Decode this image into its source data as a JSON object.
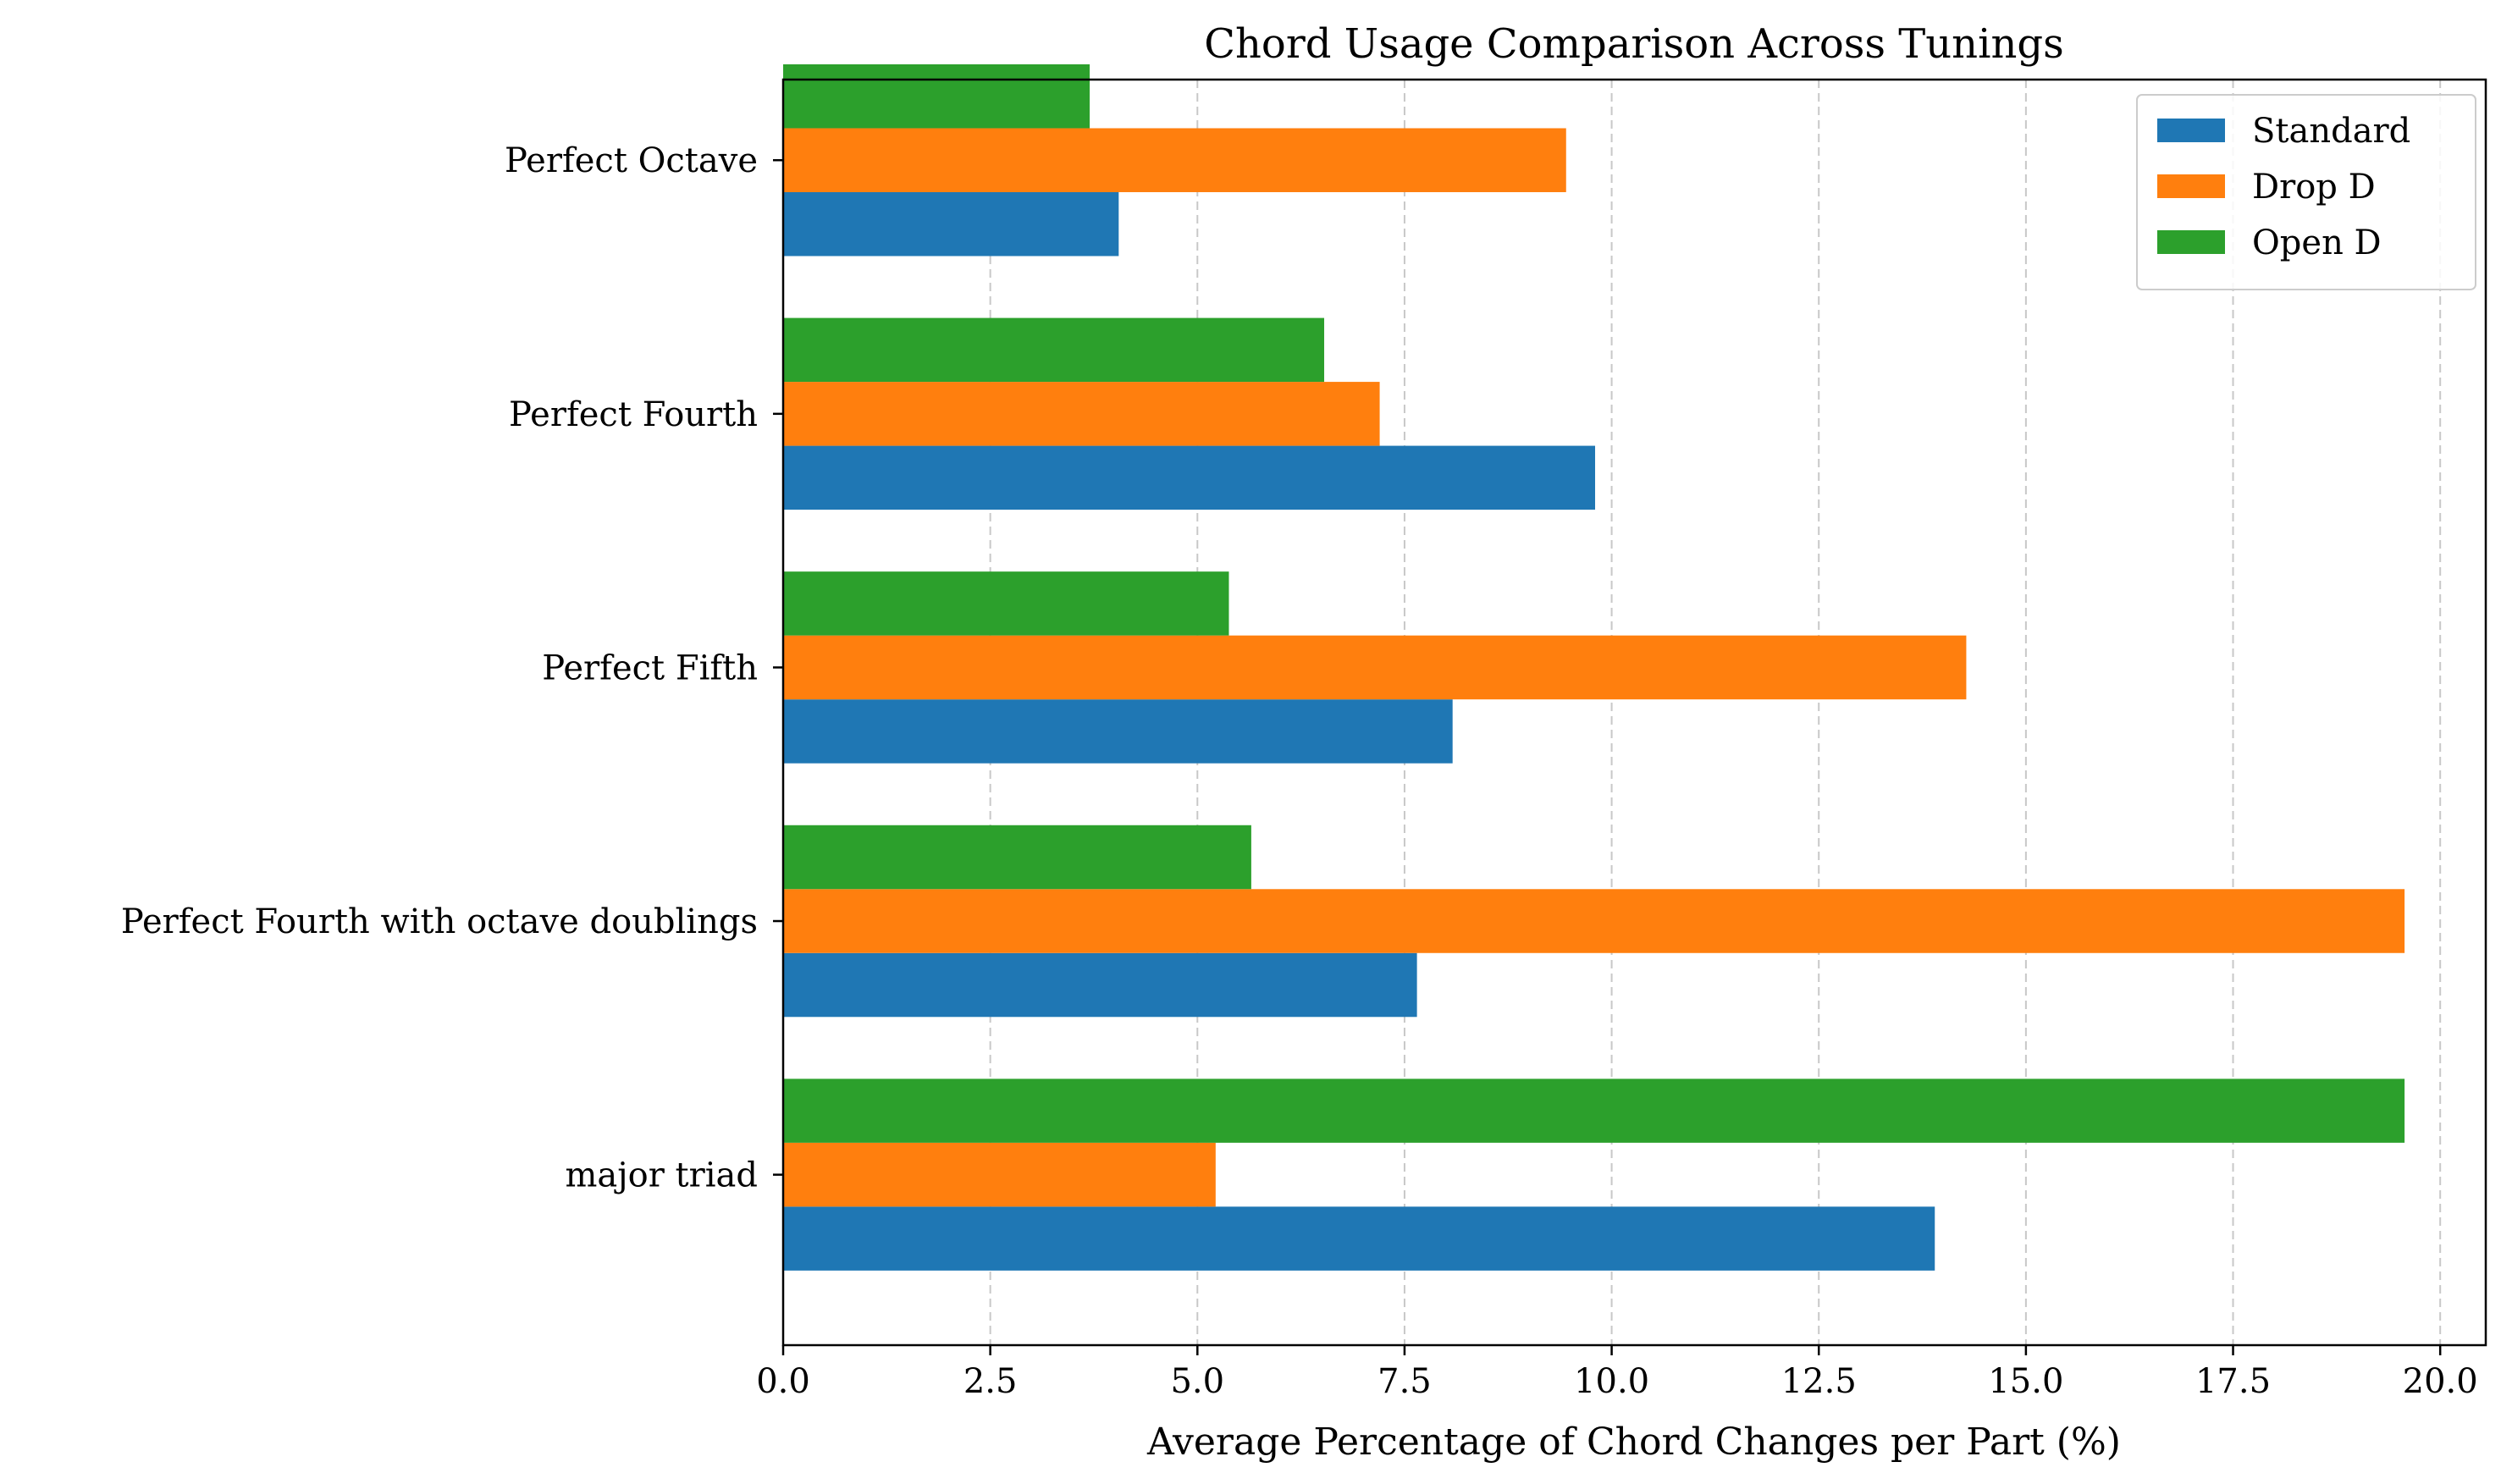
{
  "chart_data": {
    "type": "bar",
    "orientation": "horizontal",
    "title": "Chord Usage Comparison Across Tunings",
    "xlabel": "Average Percentage of Chord Changes per Part (%)",
    "ylabel": "",
    "xlim": [
      0,
      20.55
    ],
    "xticks": [
      "0.0",
      "2.5",
      "5.0",
      "7.5",
      "10.0",
      "12.5",
      "15.0",
      "17.5",
      "20.0"
    ],
    "grid": "x-dashed",
    "legend_position": "top-right",
    "categories": [
      "Perfect Octave",
      "Perfect Fourth",
      "Perfect Fifth",
      "Perfect Fourth with octave doublings",
      "major triad"
    ],
    "series": [
      {
        "name": "Standard",
        "color": "#1f77b4",
        "values": [
          4.05,
          9.8,
          8.08,
          7.65,
          13.9
        ]
      },
      {
        "name": "Drop D",
        "color": "#ff7f0e",
        "values": [
          9.45,
          7.2,
          14.28,
          19.57,
          5.22
        ]
      },
      {
        "name": "Open D",
        "color": "#2ca02c",
        "values": [
          3.7,
          6.53,
          5.38,
          5.65,
          19.57
        ]
      }
    ]
  }
}
